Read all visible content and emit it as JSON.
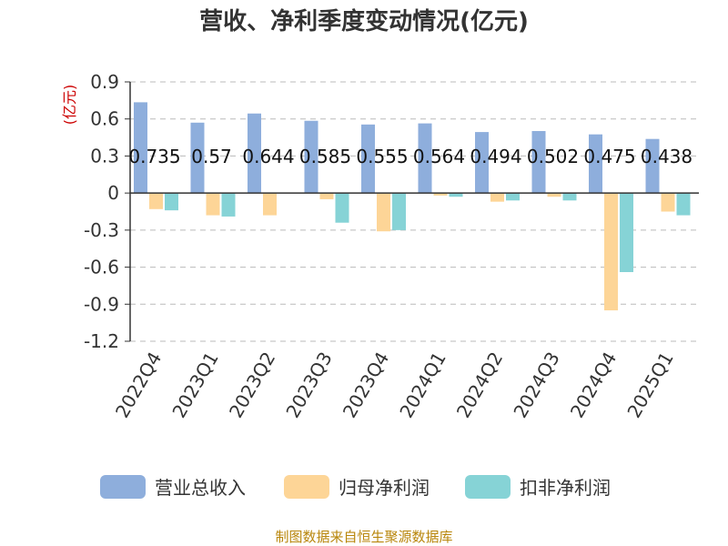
{
  "chart_data": {
    "type": "bar",
    "title": "营收、净利季度变动情况(亿元)",
    "ylabel": "(亿元)",
    "ylim": [
      -1.2,
      0.9
    ],
    "yticks": [
      "0.9",
      "0.6",
      "0.3",
      "0",
      "-0.3",
      "-0.6",
      "-0.9",
      "-1.2"
    ],
    "yticks_values": [
      0.9,
      0.6,
      0.3,
      0,
      -0.3,
      -0.6,
      -0.9,
      -1.2
    ],
    "grid": true,
    "legend_position": "bottom",
    "categories": [
      "2022Q4",
      "2023Q1",
      "2023Q2",
      "2023Q3",
      "2023Q4",
      "2024Q1",
      "2024Q2",
      "2024Q3",
      "2024Q4",
      "2025Q1"
    ],
    "series": [
      {
        "name": "营业总收入",
        "color": "#8eaedc",
        "values": [
          0.735,
          0.57,
          0.644,
          0.585,
          0.555,
          0.564,
          0.494,
          0.502,
          0.475,
          0.438
        ],
        "labels": [
          "0.735",
          "0.57",
          "0.644",
          "0.585",
          "0.555",
          "0.564",
          "0.494",
          "0.502",
          "0.475",
          "0.438"
        ]
      },
      {
        "name": "归母净利润",
        "color": "#fdd597",
        "values": [
          -0.13,
          -0.18,
          -0.18,
          -0.05,
          -0.31,
          -0.02,
          -0.07,
          -0.03,
          -0.95,
          -0.15
        ]
      },
      {
        "name": "扣非净利润",
        "color": "#86d3d6",
        "values": [
          -0.14,
          -0.19,
          0,
          -0.24,
          -0.3,
          -0.03,
          -0.06,
          -0.06,
          -0.64,
          -0.18
        ]
      }
    ]
  },
  "source": "制图数据来自恒生聚源数据库"
}
